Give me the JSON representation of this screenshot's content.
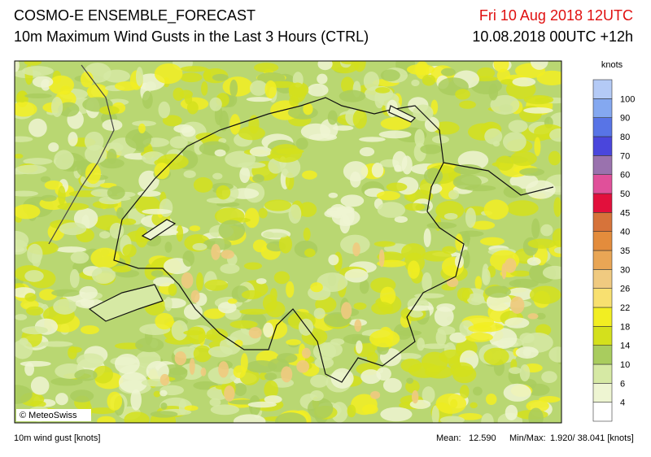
{
  "header": {
    "title": "COSMO-E ENSEMBLE_FORECAST",
    "subtitle": "10m Maximum Wind Gusts in the Last 3 Hours (CTRL)",
    "valid_time": "Fri 10 Aug 2018 12UTC",
    "run_time": "10.08.2018 00UTC +12h"
  },
  "map": {
    "copyright": "© MeteoSwiss"
  },
  "legend": {
    "unit": "knots",
    "ticks": [
      4,
      6,
      10,
      14,
      18,
      22,
      26,
      30,
      35,
      40,
      45,
      50,
      60,
      70,
      80,
      90,
      100
    ],
    "colors": [
      "#ffffff",
      "#eef5d2",
      "#d6e9a4",
      "#a9cc5e",
      "#d4e01c",
      "#f2ee22",
      "#f8e070",
      "#f0ca80",
      "#e9a655",
      "#e38c3c",
      "#d6733a",
      "#e2103c",
      "#e0509a",
      "#9a72ae",
      "#4a46dc",
      "#5874e6",
      "#84a8f0",
      "#b4caf6"
    ]
  },
  "footer": {
    "variable": "10m wind gust [knots]",
    "mean_label": "Mean:",
    "mean": "12.590",
    "minmax_label": "Min/Max:",
    "minmax": "1.920/ 38.041 [knots]"
  }
}
